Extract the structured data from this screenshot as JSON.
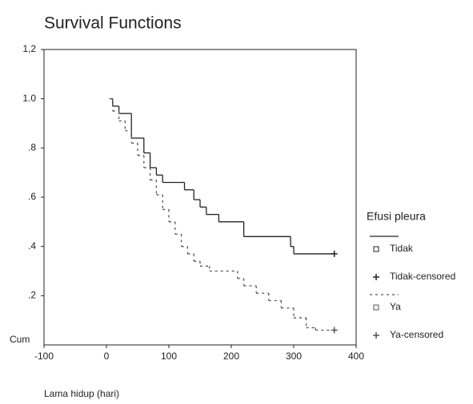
{
  "chart_data": {
    "type": "step",
    "title": "Survival Functions",
    "x_label": "Lama hidup (hari)",
    "y_label": "Cum",
    "legend_title": "Efusi pleura",
    "xlim": [
      -100,
      400
    ],
    "xticks": [
      -100,
      0,
      100,
      200,
      300,
      400
    ],
    "ylim": [
      0,
      1.2
    ],
    "yticks": [
      {
        "value": 0.2,
        "label": ".2"
      },
      {
        "value": 0.4,
        "label": ".4"
      },
      {
        "value": 0.6,
        "label": ".6"
      },
      {
        "value": 0.8,
        "label": ".8"
      },
      {
        "value": 1.0,
        "label": "1.0"
      },
      {
        "value": 1.2,
        "label": "1,2"
      }
    ],
    "series": [
      {
        "name": "Tidak",
        "color": "#222222",
        "dash": false,
        "censored": false,
        "x": [
          5,
          10,
          20,
          40,
          60,
          70,
          80,
          90,
          125,
          140,
          150,
          160,
          180,
          220,
          295,
          300,
          365
        ],
        "values": [
          1.0,
          0.97,
          0.94,
          0.84,
          0.78,
          0.72,
          0.69,
          0.66,
          0.63,
          0.59,
          0.56,
          0.53,
          0.5,
          0.44,
          0.4,
          0.37,
          0.37
        ]
      },
      {
        "name": "Tidak-censored",
        "color": "#222222",
        "censored": true,
        "x": [
          365
        ],
        "values": [
          0.37
        ]
      },
      {
        "name": "Ya",
        "color": "#555555",
        "dash": true,
        "censored": false,
        "x": [
          5,
          10,
          20,
          30,
          40,
          50,
          60,
          70,
          80,
          90,
          100,
          110,
          120,
          130,
          140,
          150,
          165,
          210,
          220,
          240,
          260,
          280,
          300,
          320,
          335,
          365
        ],
        "values": [
          1.0,
          0.95,
          0.91,
          0.87,
          0.82,
          0.77,
          0.72,
          0.67,
          0.61,
          0.55,
          0.5,
          0.45,
          0.4,
          0.37,
          0.34,
          0.32,
          0.3,
          0.27,
          0.24,
          0.21,
          0.18,
          0.15,
          0.11,
          0.07,
          0.06,
          0.06
        ]
      },
      {
        "name": "Ya-censored",
        "color": "#555555",
        "censored": true,
        "x": [
          365
        ],
        "values": [
          0.06
        ]
      }
    ]
  }
}
